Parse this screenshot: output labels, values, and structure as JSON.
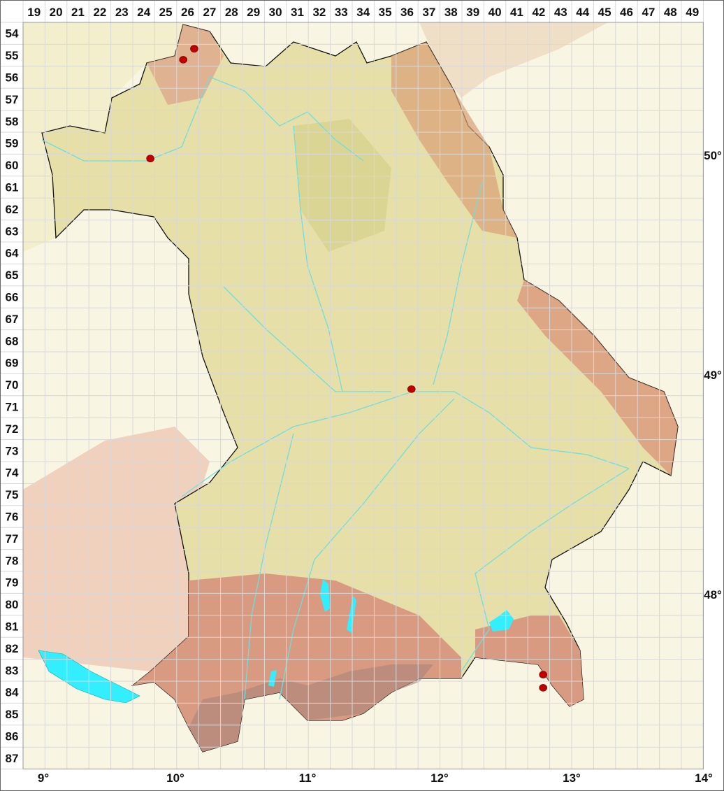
{
  "map": {
    "grid_columns": [
      "19",
      "20",
      "21",
      "22",
      "23",
      "24",
      "25",
      "26",
      "27",
      "28",
      "29",
      "30",
      "31",
      "32",
      "33",
      "34",
      "35",
      "36",
      "37",
      "38",
      "39",
      "40",
      "41",
      "42",
      "43",
      "44",
      "45",
      "46",
      "47",
      "48",
      "49"
    ],
    "grid_rows": [
      "54",
      "55",
      "56",
      "57",
      "58",
      "59",
      "60",
      "61",
      "62",
      "63",
      "64",
      "65",
      "66",
      "67",
      "68",
      "69",
      "70",
      "71",
      "72",
      "73",
      "74",
      "75",
      "76",
      "77",
      "78",
      "79",
      "80",
      "81",
      "82",
      "83",
      "84",
      "85",
      "86",
      "87"
    ],
    "longitude_labels": [
      {
        "deg": 9,
        "label": "9°"
      },
      {
        "deg": 10,
        "label": "10°"
      },
      {
        "deg": 11,
        "label": "11°"
      },
      {
        "deg": 12,
        "label": "12°"
      },
      {
        "deg": 13,
        "label": "13°"
      },
      {
        "deg": 14,
        "label": "14°"
      }
    ],
    "latitude_labels": [
      {
        "deg": 50,
        "label": "50°"
      },
      {
        "deg": 49,
        "label": "49°"
      },
      {
        "deg": 48,
        "label": "48°"
      }
    ],
    "occurrence_points_grid": [
      {
        "col": 26.3,
        "row": 54.7
      },
      {
        "col": 25.8,
        "row": 55.2
      },
      {
        "col": 24.3,
        "row": 59.7
      },
      {
        "col": 36.2,
        "row": 70.2
      },
      {
        "col": 42.2,
        "row": 83.2
      },
      {
        "col": 42.2,
        "row": 83.8
      }
    ],
    "colors": {
      "point": "#c00000",
      "water": "#33eeff",
      "river": "#6fdede",
      "lowland": "#e9e4b4",
      "upland": "#ddd79a",
      "mountain": "#dc9a82",
      "outside": "#f4f0d6",
      "border": "#111111",
      "grid": "#d8d8d8"
    }
  }
}
